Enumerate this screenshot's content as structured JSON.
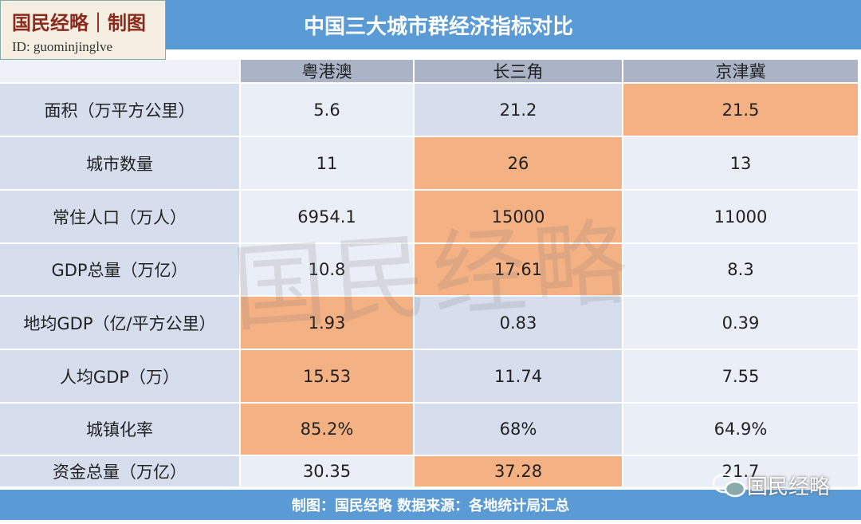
{
  "logo": {
    "title": "国民经略｜制图",
    "id": "ID: guominjinglve"
  },
  "title": "中国三大城市群经济指标对比",
  "table": {
    "header": [
      "粤港澳",
      "长三角",
      "京津冀"
    ],
    "rows": [
      [
        "面积（万平方公里）",
        "5.6",
        "21.2",
        "21.5"
      ],
      [
        "城市数量",
        "11",
        "26",
        "13"
      ],
      [
        "常住人口（万人）",
        "6954.1",
        "15000",
        "11000"
      ],
      [
        "GDP总量（万亿）",
        "10.8",
        "17.61",
        "8.3"
      ],
      [
        "地均GDP（亿/平方公里）",
        "1.93",
        "0.83",
        "0.39"
      ],
      [
        "人均GDP（万）",
        "15.53",
        "11.74",
        "7.55"
      ],
      [
        "城镇化率",
        "85.2%",
        "68%",
        "64.9%"
      ],
      [
        "资金总量（万亿）",
        "30.35",
        "37.28",
        "21.7"
      ]
    ],
    "highlighted": [
      3,
      2,
      2,
      2,
      1,
      1,
      1,
      2
    ]
  },
  "watermark": "国民经略",
  "wechat": "国民经略",
  "footer": "制图：国民经略 数据来源：各地统计局汇总"
}
